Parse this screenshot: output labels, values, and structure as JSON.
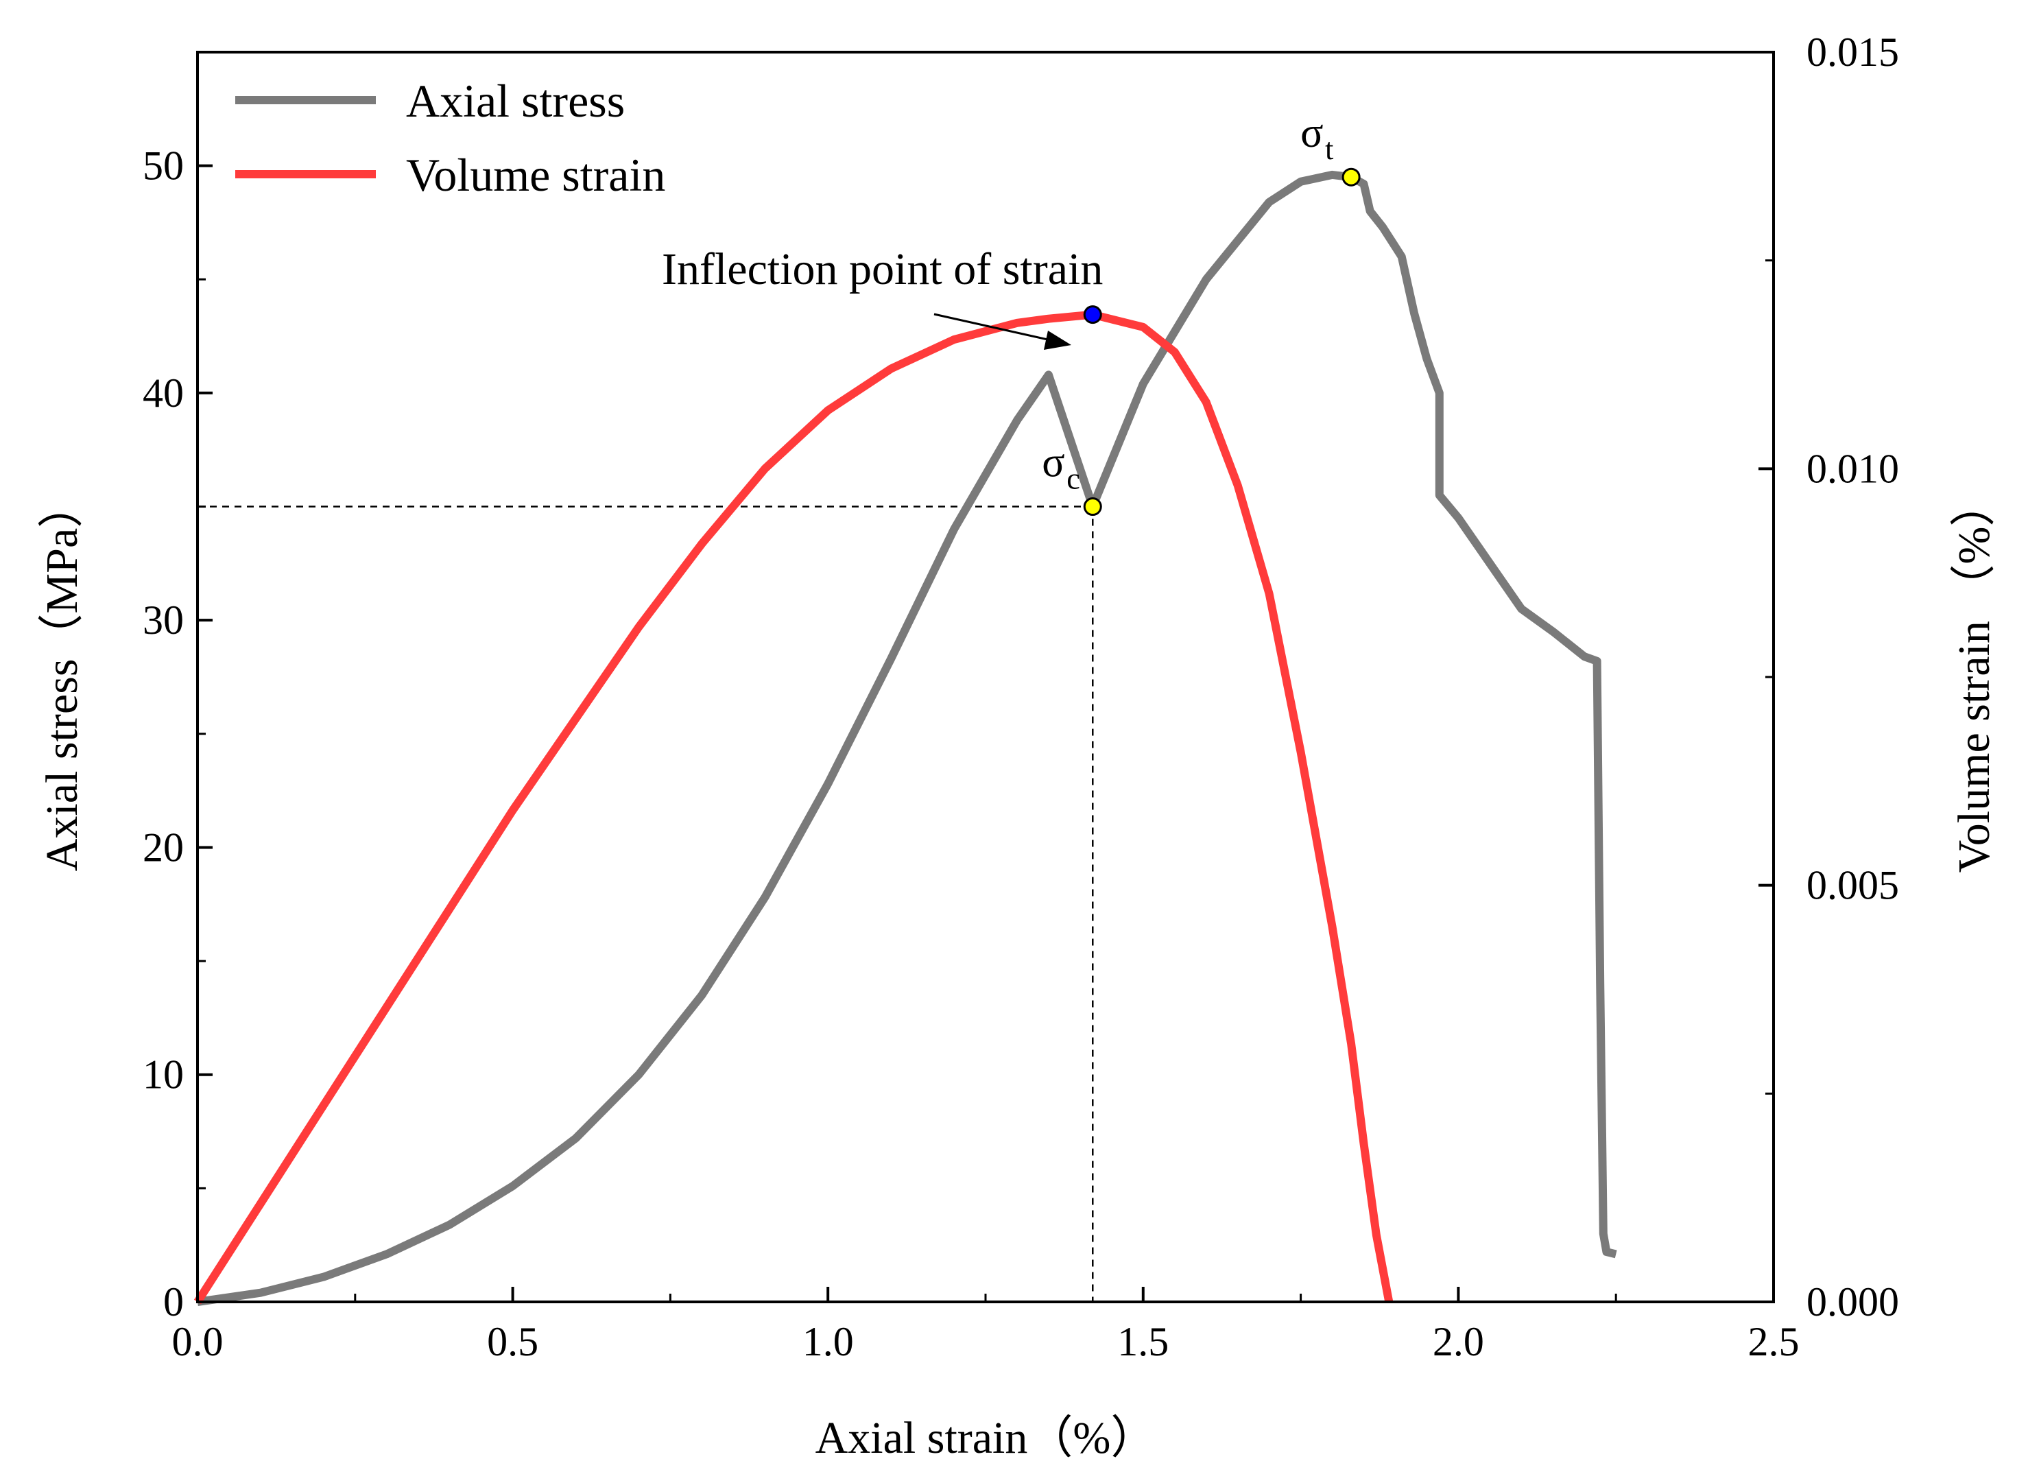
{
  "chart_data": {
    "type": "line",
    "title": "",
    "xlabel": "Axial strain（%）",
    "ylabel": "Axial stress（MPa）",
    "y2label": "Volume strain （%）",
    "xlim": [
      0.0,
      2.5
    ],
    "ylim": [
      0,
      55
    ],
    "y2lim": [
      0.0,
      0.015
    ],
    "x_ticks": [
      "0.0",
      "0.5",
      "1.0",
      "1.5",
      "2.0",
      "2.5"
    ],
    "y_ticks": [
      "0",
      "10",
      "20",
      "30",
      "40",
      "50"
    ],
    "y2_ticks": [
      "0.000",
      "0.005",
      "0.010",
      "0.015"
    ],
    "legend_position": "top-left",
    "series": [
      {
        "name": "Axial stress",
        "axis": "left",
        "color": "#7a7a7a",
        "x": [
          0.0,
          0.1,
          0.2,
          0.3,
          0.4,
          0.5,
          0.6,
          0.7,
          0.8,
          0.9,
          1.0,
          1.1,
          1.2,
          1.3,
          1.35,
          1.42,
          1.5,
          1.6,
          1.7,
          1.75,
          1.8,
          1.83,
          1.85,
          1.86,
          1.88,
          1.91,
          1.93,
          1.95,
          1.97,
          1.97,
          2.0,
          2.05,
          2.1,
          2.15,
          2.2,
          2.22,
          2.225,
          2.23,
          2.235,
          2.25
        ],
        "values": [
          0.0,
          0.4,
          1.1,
          2.1,
          3.4,
          5.1,
          7.2,
          10.0,
          13.5,
          17.8,
          22.8,
          28.3,
          34.0,
          38.8,
          40.8,
          35.0,
          40.4,
          45.0,
          48.4,
          49.3,
          49.6,
          49.5,
          49.2,
          48.0,
          47.3,
          46.0,
          43.5,
          41.5,
          40.0,
          35.5,
          34.5,
          32.5,
          30.5,
          29.5,
          28.4,
          28.2,
          14.0,
          3.0,
          2.2,
          2.1
        ]
      },
      {
        "name": "Volume strain",
        "axis": "right",
        "color": "#ff3b3b",
        "x": [
          0.0,
          0.1,
          0.2,
          0.3,
          0.4,
          0.5,
          0.6,
          0.7,
          0.8,
          0.9,
          1.0,
          1.1,
          1.2,
          1.3,
          1.35,
          1.42,
          1.5,
          1.55,
          1.6,
          1.65,
          1.7,
          1.75,
          1.8,
          1.83,
          1.85,
          1.87,
          1.89
        ],
        "values": [
          0.0,
          0.00118,
          0.00236,
          0.00354,
          0.00472,
          0.0059,
          0.007,
          0.0081,
          0.0091,
          0.01,
          0.0107,
          0.0112,
          0.01155,
          0.01175,
          0.0118,
          0.01185,
          0.0117,
          0.0114,
          0.0108,
          0.0098,
          0.0085,
          0.0066,
          0.0045,
          0.0031,
          0.0019,
          0.0008,
          0.0
        ]
      }
    ],
    "points": [
      {
        "name": "σc",
        "label": "σ",
        "sub": "c",
        "x": 1.42,
        "y": 35.0,
        "axis": "left",
        "color": "#ffff00"
      },
      {
        "name": "σt",
        "label": "σ",
        "sub": "t",
        "x": 1.83,
        "y": 49.5,
        "axis": "left",
        "color": "#ffff00"
      },
      {
        "name": "inflection",
        "label": "",
        "sub": "",
        "x": 1.42,
        "y": 0.01185,
        "axis": "right",
        "color": "#0000ff"
      }
    ],
    "annotation": "Inflection point of strain"
  }
}
